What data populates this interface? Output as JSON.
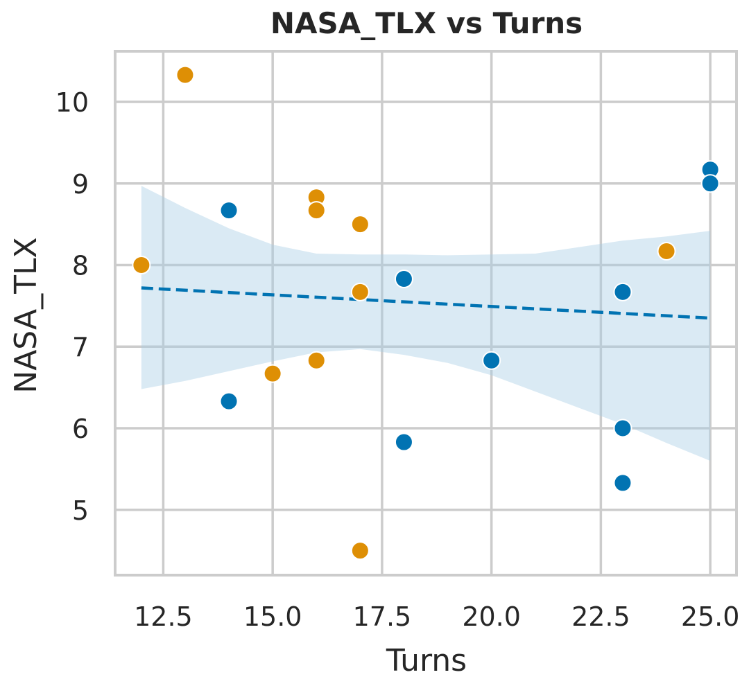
{
  "chart_data": {
    "type": "scatter",
    "title": "NASA_TLX vs Turns",
    "xlabel": "Turns",
    "ylabel": "NASA_TLX",
    "xlim": [
      11.4,
      25.6
    ],
    "ylim": [
      4.2,
      10.62
    ],
    "xticks": [
      12.5,
      15.0,
      17.5,
      20.0,
      22.5,
      25.0
    ],
    "xtick_labels": [
      "12.5",
      "15.0",
      "17.5",
      "20.0",
      "22.5",
      "25.0"
    ],
    "yticks": [
      5,
      6,
      7,
      8,
      9,
      10
    ],
    "ytick_labels": [
      "5",
      "6",
      "7",
      "8",
      "9",
      "10"
    ],
    "grid": true,
    "series": [
      {
        "color": "#0173b2",
        "points": [
          {
            "x": 14,
            "y": 8.67
          },
          {
            "x": 14,
            "y": 6.33
          },
          {
            "x": 18,
            "y": 7.83
          },
          {
            "x": 18,
            "y": 5.83
          },
          {
            "x": 20,
            "y": 6.83
          },
          {
            "x": 23,
            "y": 7.67
          },
          {
            "x": 23,
            "y": 6.0
          },
          {
            "x": 23,
            "y": 5.33
          },
          {
            "x": 25,
            "y": 9.17
          },
          {
            "x": 25,
            "y": 9.0
          }
        ]
      },
      {
        "color": "#de8f05",
        "points": [
          {
            "x": 12,
            "y": 8.0
          },
          {
            "x": 13,
            "y": 10.33
          },
          {
            "x": 15,
            "y": 6.67
          },
          {
            "x": 16,
            "y": 8.83
          },
          {
            "x": 16,
            "y": 8.67
          },
          {
            "x": 16,
            "y": 6.83
          },
          {
            "x": 17,
            "y": 8.5
          },
          {
            "x": 17,
            "y": 7.67
          },
          {
            "x": 17,
            "y": 4.5
          },
          {
            "x": 24,
            "y": 8.17
          }
        ]
      }
    ],
    "regression": {
      "color": "#0173b2",
      "style": "dashed",
      "x": [
        12,
        25
      ],
      "y": [
        7.72,
        7.35
      ]
    },
    "confidence_band": {
      "color": "#a6cde4",
      "x": [
        12,
        13,
        14,
        15,
        16,
        17,
        18,
        19,
        20,
        21,
        22,
        23,
        24,
        25
      ],
      "upper": [
        8.97,
        8.7,
        8.45,
        8.25,
        8.14,
        8.13,
        8.13,
        8.12,
        8.13,
        8.14,
        8.22,
        8.3,
        8.35,
        8.42
      ],
      "lower": [
        6.48,
        6.58,
        6.7,
        6.82,
        6.93,
        6.97,
        6.9,
        6.8,
        6.65,
        6.45,
        6.25,
        6.05,
        5.82,
        5.6
      ]
    }
  }
}
